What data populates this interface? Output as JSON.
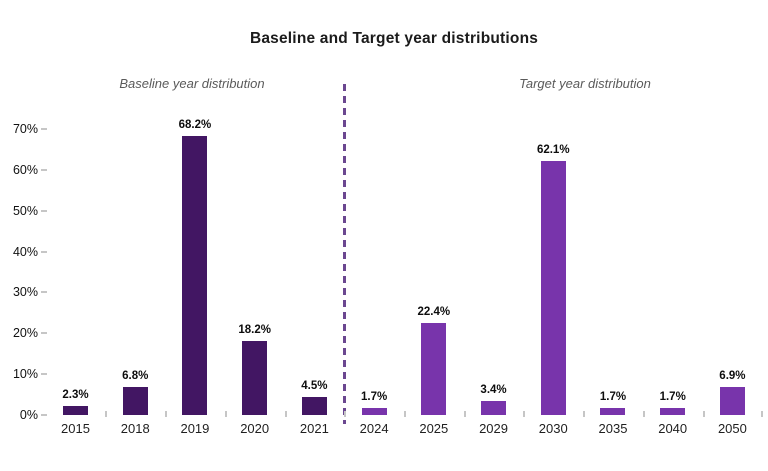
{
  "header": {
    "title": "Baseline and Target year distributions"
  },
  "panels": {
    "baseline": {
      "subtitle": "Baseline year distribution"
    },
    "target": {
      "subtitle": "Target year distribution"
    }
  },
  "colors": {
    "baseline_bar": "#421663",
    "target_bar": "#7834ab",
    "divider": "#6b4790",
    "axis_tick": "#c6c6c6",
    "title_text": "#1b1b1b",
    "subtitle_text": "#5a5a5a"
  },
  "chart_data": {
    "type": "bar",
    "title": "Baseline and Target year distributions",
    "xlabel": "",
    "ylabel": "",
    "ylim": [
      0,
      70
    ],
    "grid": false,
    "legend_position": "none",
    "y_tick_labels": [
      "0%",
      "10%",
      "20%",
      "30%",
      "40%",
      "50%",
      "60%",
      "70%"
    ],
    "y_tick_values": [
      0,
      10,
      20,
      30,
      40,
      50,
      60,
      70
    ],
    "series": [
      {
        "name": "Baseline year distribution",
        "color": "#421663",
        "categories": [
          "2015",
          "2018",
          "2019",
          "2020",
          "2021"
        ],
        "values": [
          2.3,
          6.8,
          68.2,
          18.2,
          4.5
        ],
        "data_labels": [
          "2.3%",
          "6.8%",
          "68.2%",
          "18.2%",
          "4.5%"
        ]
      },
      {
        "name": "Target year distribution",
        "color": "#7834ab",
        "categories": [
          "2024",
          "2025",
          "2029",
          "2030",
          "2035",
          "2040",
          "2050"
        ],
        "values": [
          1.7,
          22.4,
          3.4,
          62.1,
          1.7,
          1.7,
          6.9
        ],
        "data_labels": [
          "1.7%",
          "22.4%",
          "3.4%",
          "62.1%",
          "1.7%",
          "1.7%",
          "6.9%"
        ]
      }
    ]
  }
}
